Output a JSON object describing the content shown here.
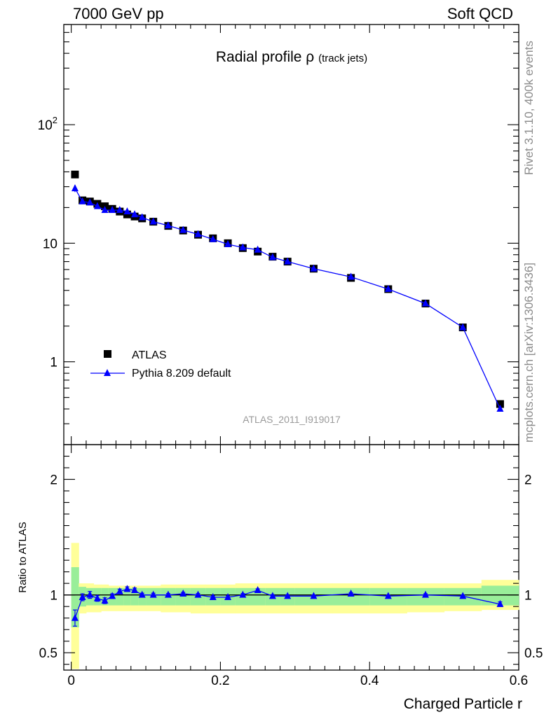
{
  "header": {
    "left": "7000 GeV pp",
    "right": "Soft QCD"
  },
  "side": {
    "top": "Rivet 3.1.10,  400k events",
    "bottom": "mcplots.cern.ch [arXiv:1306.3436]"
  },
  "chart_data": [
    {
      "type": "scatter",
      "title_main": "Radial profile ρ",
      "title_sub": "(track jets)",
      "watermark": "ATLAS_2011_I919017",
      "yscale": "log",
      "xlim": [
        -0.01,
        0.6
      ],
      "ylim": [
        0.2,
        700
      ],
      "yticklabels": [
        "1",
        "10",
        "10²"
      ],
      "legend_position": "lower-left",
      "series": [
        {
          "name": "ATLAS",
          "marker": "square",
          "color": "#000000",
          "x": [
            0.005,
            0.015,
            0.025,
            0.035,
            0.045,
            0.055,
            0.065,
            0.075,
            0.085,
            0.095,
            0.11,
            0.13,
            0.15,
            0.17,
            0.19,
            0.21,
            0.23,
            0.25,
            0.27,
            0.29,
            0.325,
            0.375,
            0.425,
            0.475,
            0.525,
            0.575
          ],
          "y": [
            38.0,
            23.0,
            22.5,
            21.5,
            20.5,
            19.5,
            18.5,
            17.5,
            16.8,
            16.2,
            15.2,
            14.0,
            12.8,
            11.8,
            11.0,
            10.0,
            9.1,
            8.5,
            7.7,
            7.0,
            6.1,
            5.1,
            4.1,
            3.1,
            1.95,
            0.44
          ]
        },
        {
          "name": "Pythia 8.209 default",
          "marker": "triangle",
          "color": "#0000ff",
          "x": [
            0.005,
            0.015,
            0.025,
            0.035,
            0.045,
            0.055,
            0.065,
            0.075,
            0.085,
            0.095,
            0.11,
            0.13,
            0.15,
            0.17,
            0.19,
            0.21,
            0.23,
            0.25,
            0.27,
            0.29,
            0.325,
            0.375,
            0.425,
            0.475,
            0.525,
            0.575
          ],
          "y": [
            29.0,
            22.5,
            22.0,
            20.5,
            19.0,
            19.0,
            19.0,
            18.5,
            17.5,
            16.5,
            15.2,
            14.1,
            12.9,
            11.9,
            10.8,
            9.8,
            9.2,
            8.8,
            7.6,
            7.0,
            6.1,
            5.2,
            4.1,
            3.1,
            1.95,
            0.4
          ],
          "yerr": [
            2.0,
            0.6,
            0.6,
            0.5,
            0.5,
            0.4,
            0.4,
            0.4,
            0.3,
            0.3,
            0.3,
            0.2,
            0.2,
            0.2,
            0.2,
            0.2,
            0.15,
            0.15,
            0.12,
            0.1,
            0.1,
            0.08,
            0.06,
            0.05,
            0.04,
            0.02
          ]
        }
      ]
    },
    {
      "type": "scatter",
      "ylabel": "Ratio to ATLAS",
      "xlabel": "Charged Particle r",
      "xlim": [
        -0.01,
        0.6
      ],
      "ylim": [
        0.35,
        2.3
      ],
      "yticklabels": [
        "0.5",
        "1",
        "2"
      ],
      "xticklabels": [
        "0",
        "0.2",
        "0.4",
        "0.6"
      ],
      "reference_line": 1,
      "bands": {
        "edges": [
          0.0,
          0.01,
          0.02,
          0.03,
          0.04,
          0.05,
          0.06,
          0.07,
          0.08,
          0.09,
          0.1,
          0.12,
          0.14,
          0.16,
          0.18,
          0.2,
          0.22,
          0.24,
          0.26,
          0.28,
          0.3,
          0.35,
          0.4,
          0.45,
          0.5,
          0.55,
          0.6
        ],
        "inner_color": "#99ee99",
        "outer_color": "#ffff99",
        "inner_lo": [
          0.72,
          0.9,
          0.91,
          0.91,
          0.91,
          0.91,
          0.91,
          0.91,
          0.91,
          0.91,
          0.91,
          0.91,
          0.91,
          0.91,
          0.91,
          0.91,
          0.91,
          0.91,
          0.91,
          0.91,
          0.91,
          0.91,
          0.91,
          0.91,
          0.91,
          0.91
        ],
        "inner_hi": [
          1.24,
          1.07,
          1.06,
          1.06,
          1.06,
          1.06,
          1.06,
          1.06,
          1.06,
          1.06,
          1.06,
          1.06,
          1.06,
          1.06,
          1.06,
          1.06,
          1.06,
          1.06,
          1.06,
          1.06,
          1.06,
          1.06,
          1.06,
          1.06,
          1.06,
          1.08
        ],
        "outer_lo": [
          0.36,
          0.84,
          0.85,
          0.85,
          0.86,
          0.86,
          0.86,
          0.86,
          0.86,
          0.86,
          0.86,
          0.85,
          0.85,
          0.84,
          0.84,
          0.84,
          0.84,
          0.84,
          0.84,
          0.84,
          0.84,
          0.84,
          0.84,
          0.85,
          0.86,
          0.87
        ],
        "outer_hi": [
          1.45,
          1.1,
          1.1,
          1.09,
          1.09,
          1.08,
          1.08,
          1.08,
          1.08,
          1.08,
          1.08,
          1.09,
          1.09,
          1.09,
          1.09,
          1.09,
          1.1,
          1.1,
          1.1,
          1.1,
          1.1,
          1.1,
          1.1,
          1.1,
          1.1,
          1.13
        ]
      },
      "series": [
        {
          "name": "Pythia 8.209 default",
          "marker": "triangle",
          "color": "#0000ff",
          "x": [
            0.005,
            0.015,
            0.025,
            0.035,
            0.045,
            0.055,
            0.065,
            0.075,
            0.085,
            0.095,
            0.11,
            0.13,
            0.15,
            0.17,
            0.19,
            0.21,
            0.23,
            0.25,
            0.27,
            0.29,
            0.325,
            0.375,
            0.425,
            0.475,
            0.525,
            0.575
          ],
          "y": [
            0.8,
            0.98,
            1.0,
            0.97,
            0.95,
            0.99,
            1.03,
            1.05,
            1.04,
            1.0,
            1.0,
            1.0,
            1.01,
            1.0,
            0.98,
            0.98,
            1.0,
            1.04,
            0.99,
            0.99,
            0.99,
            1.01,
            0.99,
            1.0,
            0.99,
            0.92
          ],
          "yerr": [
            0.07,
            0.03,
            0.03,
            0.025,
            0.025,
            0.02,
            0.02,
            0.02,
            0.02,
            0.015,
            0.015,
            0.012,
            0.012,
            0.012,
            0.012,
            0.012,
            0.012,
            0.012,
            0.012,
            0.012,
            0.01,
            0.01,
            0.01,
            0.01,
            0.01,
            0.02
          ]
        }
      ]
    }
  ]
}
